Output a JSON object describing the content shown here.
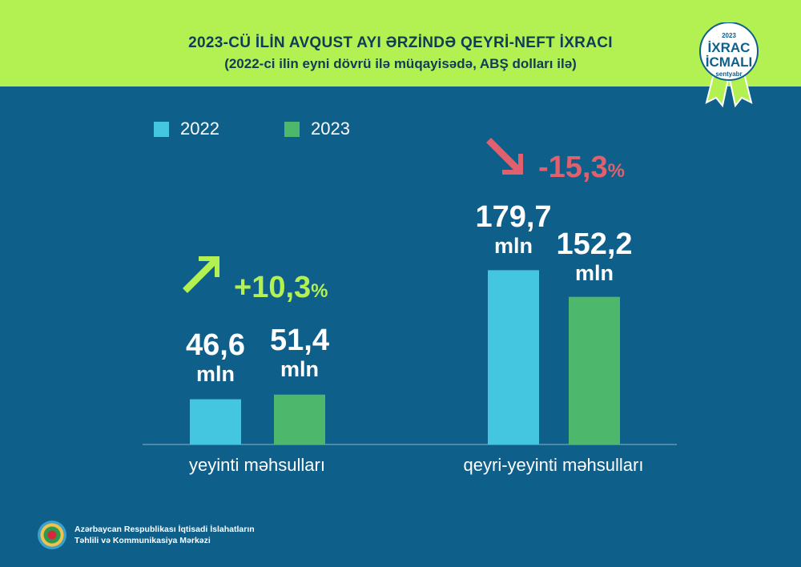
{
  "header": {
    "title": "2023-CÜ İLİN AVQUST AYI ƏRZİNDƏ QEYRİ-NEFT İXRACI",
    "subtitle": "(2022-ci ilin eyni dövrü ilə müqayisədə, ABŞ dolları ilə)"
  },
  "badge": {
    "year": "2023",
    "line1": "İXRAC",
    "line2": "İCMALI",
    "month": "sentyabr"
  },
  "chart_data": {
    "type": "bar",
    "categories": [
      "yeyinti məhsulları",
      "qeyri-yeyinti məhsulları"
    ],
    "series": [
      {
        "name": "2022",
        "color": "#45c6e0",
        "values": [
          46.6,
          179.7
        ],
        "labels": [
          "46,6",
          "179,7"
        ]
      },
      {
        "name": "2023",
        "color": "#4db86c",
        "values": [
          51.4,
          152.2
        ],
        "labels": [
          "51,4",
          "152,2"
        ]
      }
    ],
    "unit": "mln",
    "changes": [
      {
        "value": "+10,3",
        "pct": "%",
        "direction": "up",
        "color": "#b3f052"
      },
      {
        "value": "-15,3",
        "pct": "%",
        "direction": "down",
        "color": "#e0606e"
      }
    ],
    "legend": "top-left"
  },
  "footer": {
    "line1": "Azərbaycan Respublikası İqtisadi İslahatların",
    "line2": "Təhlili və Kommunikasiya Mərkəzi"
  }
}
